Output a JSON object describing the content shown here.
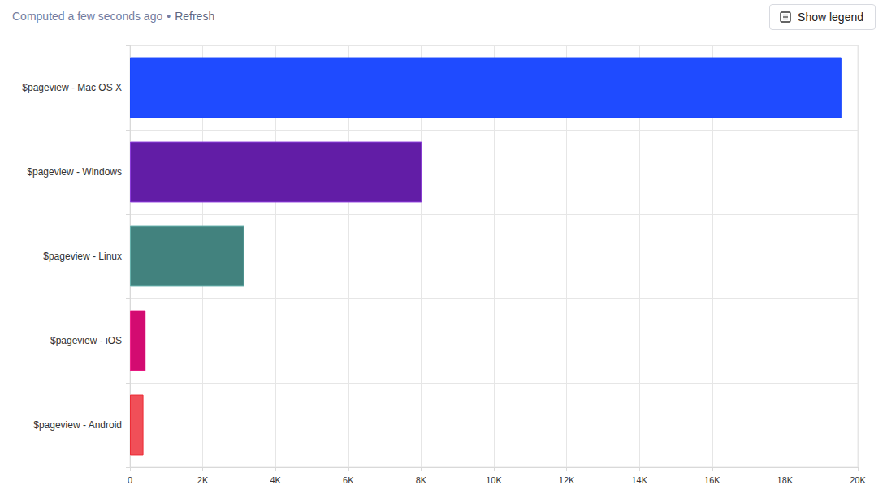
{
  "header": {
    "status": "Computed a few seconds ago",
    "separator": "•",
    "refresh": "Refresh",
    "button": "Show legend"
  },
  "chart_data": {
    "type": "bar",
    "orientation": "horizontal",
    "categories": [
      "$pageview - Mac OS X",
      "$pageview - Windows",
      "$pageview - Linux",
      "$pageview - iOS",
      "$pageview - Android"
    ],
    "values": [
      19550,
      8020,
      3140,
      430,
      370
    ],
    "colors": [
      "#1f4bff",
      "#621da6",
      "#42827e",
      "#d30b71",
      "#f04f58"
    ],
    "xlim": [
      0,
      20000
    ],
    "xticks": [
      0,
      {
        "value": 2000,
        "label": "2K"
      },
      {
        "value": 4000,
        "label": "4K"
      },
      {
        "value": 6000,
        "label": "6K"
      },
      {
        "value": 8000,
        "label": "8K"
      },
      {
        "value": 10000,
        "label": "10K"
      },
      {
        "value": 12000,
        "label": "12K"
      },
      {
        "value": 14000,
        "label": "14K"
      },
      {
        "value": 16000,
        "label": "16K"
      },
      {
        "value": 18000,
        "label": "18K"
      },
      {
        "value": 20000,
        "label": "20K"
      }
    ],
    "grid": true
  }
}
